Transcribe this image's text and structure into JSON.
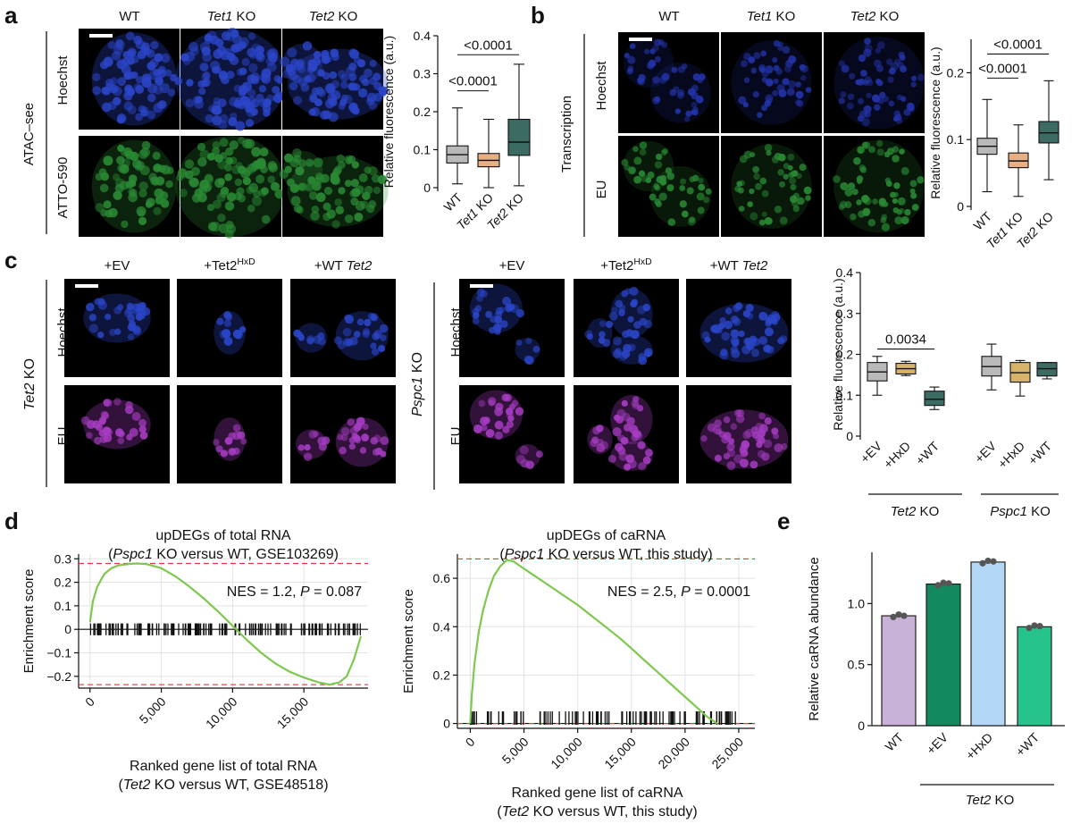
{
  "panels": {
    "a": {
      "label": "a",
      "columns": [
        {
          "text": "WT",
          "italic": "",
          "rest": ""
        },
        {
          "text": "",
          "italic": "Tet1",
          "rest": " KO"
        },
        {
          "text": "",
          "italic": "Tet2",
          "rest": " KO"
        }
      ],
      "group_label": "ATAC–see",
      "row_labels": [
        "Hoechst",
        "ATTO-590"
      ],
      "micro_colors": [
        "#2b45c8",
        "#2a8a34"
      ],
      "chart": {
        "ylabel": "Relative fluorescence (a.u.)",
        "yticks": [
          "0",
          "0.1",
          "0.2",
          "0.3",
          "0.4"
        ],
        "ylim": [
          0,
          0.4
        ],
        "categories": [
          "WT",
          "Tet1 KO",
          "Tet2 KO"
        ],
        "cat_plain": [
          "WT",
          "",
          ""
        ],
        "cat_italic": [
          "",
          "Tet1",
          "Tet2"
        ],
        "cat_rest": [
          "",
          " KO",
          " KO"
        ],
        "colors": [
          "#b9b9b9",
          "#e8ae86",
          "#3c6b63"
        ],
        "boxes": [
          {
            "min": 0.01,
            "q1": 0.065,
            "median": 0.087,
            "q3": 0.11,
            "max": 0.21
          },
          {
            "min": 0.0,
            "q1": 0.055,
            "median": 0.072,
            "q3": 0.09,
            "max": 0.18
          },
          {
            "min": 0.005,
            "q1": 0.085,
            "median": 0.12,
            "q3": 0.18,
            "max": 0.325
          }
        ],
        "brackets": [
          {
            "from": 0,
            "to": 1,
            "y": 0.255,
            "label": "<0.0001"
          },
          {
            "from": 0,
            "to": 2,
            "y": 0.35,
            "label": "<0.0001"
          }
        ]
      }
    },
    "b": {
      "label": "b",
      "columns": [
        {
          "text": "WT",
          "italic": "",
          "rest": ""
        },
        {
          "text": "",
          "italic": "Tet1",
          "rest": " KO"
        },
        {
          "text": "",
          "italic": "Tet2",
          "rest": " KO"
        }
      ],
      "group_label": "Transcription",
      "row_labels": [
        "Hoechst",
        "EU"
      ],
      "micro_colors": [
        "#2333a8",
        "#2a8a34"
      ],
      "chart": {
        "ylabel": "Relative fluorescence (a.u.)",
        "yticks": [
          "0",
          "0.1",
          "0.2"
        ],
        "ylim": [
          0,
          0.25
        ],
        "categories": [
          "WT",
          "Tet1 KO",
          "Tet2 KO"
        ],
        "cat_plain": [
          "WT",
          "",
          ""
        ],
        "cat_italic": [
          "",
          "Tet1",
          "Tet2"
        ],
        "cat_rest": [
          "",
          " KO",
          " KO"
        ],
        "colors": [
          "#b9b9b9",
          "#e8ae86",
          "#3c6b63"
        ],
        "boxes": [
          {
            "min": 0.022,
            "q1": 0.078,
            "median": 0.09,
            "q3": 0.102,
            "max": 0.16
          },
          {
            "min": 0.015,
            "q1": 0.058,
            "median": 0.068,
            "q3": 0.08,
            "max": 0.122
          },
          {
            "min": 0.04,
            "q1": 0.095,
            "median": 0.11,
            "q3": 0.127,
            "max": 0.188
          }
        ],
        "brackets": [
          {
            "from": 0,
            "to": 1,
            "y": 0.192,
            "label": "<0.0001"
          },
          {
            "from": 0,
            "to": 2,
            "y": 0.228,
            "label": "<0.0001"
          }
        ]
      }
    },
    "c": {
      "label": "c",
      "col_labels": [
        "+EV",
        "+Tet2",
        "+WT "
      ],
      "col_sup": [
        "",
        "HxD",
        ""
      ],
      "col_italic_tail": [
        "",
        "",
        "Tet2"
      ],
      "left_group": {
        "italic": "Tet2",
        "rest": " KO"
      },
      "right_group": {
        "italic": "Pspc1",
        "rest": " KO"
      },
      "row_labels": [
        "Hoechst",
        "EU"
      ],
      "micro_colors": [
        "#2b45c8",
        "#a63cc2"
      ],
      "chart": {
        "ylabel": "Relative fluorescence (a.u.)",
        "yticks": [
          "0",
          "0.1",
          "0.2",
          "0.3",
          "0.4"
        ],
        "ylim": [
          0,
          0.4
        ],
        "categories": [
          "+EV",
          "+HxD",
          "+WT",
          "+EV",
          "+HxD",
          "+WT"
        ],
        "colors": [
          "#b9b9b9",
          "#d8b46a",
          "#3c6b63",
          "#b9b9b9",
          "#d8b46a",
          "#3c6b63"
        ],
        "boxes": [
          {
            "min": 0.1,
            "q1": 0.135,
            "median": 0.157,
            "q3": 0.18,
            "max": 0.195
          },
          {
            "min": 0.148,
            "q1": 0.152,
            "median": 0.165,
            "q3": 0.178,
            "max": 0.183
          },
          {
            "min": 0.065,
            "q1": 0.075,
            "median": 0.09,
            "q3": 0.11,
            "max": 0.12
          },
          {
            "min": 0.113,
            "q1": 0.147,
            "median": 0.17,
            "q3": 0.195,
            "max": 0.225
          },
          {
            "min": 0.098,
            "q1": 0.132,
            "median": 0.155,
            "q3": 0.18,
            "max": 0.185
          },
          {
            "min": 0.14,
            "q1": 0.147,
            "median": 0.165,
            "q3": 0.18,
            "max": 0.18
          }
        ],
        "brackets": [
          {
            "from": 0,
            "to": 2,
            "y": 0.213,
            "label": "0.0034"
          }
        ],
        "group_labels": [
          {
            "italic": "Tet2",
            "rest": " KO"
          },
          {
            "italic": "Pspc1",
            "rest": " KO"
          }
        ]
      }
    },
    "d": {
      "label": "d",
      "left": {
        "title1": "upDEGs of total RNA",
        "title2_open": "(",
        "title2_italic": "Pspc1",
        "title2_rest": " KO versus WT, GSE103269)",
        "annotation": "NES = 1.2, ",
        "annotation_p": "P",
        "annotation_tail": " = 0.087",
        "ylabel": "Enrichment score",
        "yticks": [
          "0.3",
          "0.2",
          "0.1",
          "0",
          "−0.1",
          "−0.2"
        ],
        "ytick_values": [
          0.3,
          0.2,
          0.1,
          0,
          -0.1,
          -0.2
        ],
        "ylim": [
          -0.25,
          0.32
        ],
        "xticks": [
          "0",
          "5,000",
          "10,000",
          "15,000"
        ],
        "xtick_values": [
          0,
          5000,
          10000,
          15000
        ],
        "xlim": [
          -800,
          19500
        ],
        "xlabel1": "Ranked gene list of total RNA",
        "xlabel2_open": "(",
        "xlabel2_italic": "Tet2",
        "xlabel2_rest": " KO versus WT, GSE48518)",
        "max_es": 0.28,
        "min_es": -0.235,
        "curve": [
          [
            0,
            0.03
          ],
          [
            200,
            0.12
          ],
          [
            500,
            0.18
          ],
          [
            1000,
            0.235
          ],
          [
            1500,
            0.26
          ],
          [
            2000,
            0.272
          ],
          [
            2700,
            0.278
          ],
          [
            3300,
            0.28
          ],
          [
            4000,
            0.277
          ],
          [
            5000,
            0.26
          ],
          [
            6000,
            0.225
          ],
          [
            7000,
            0.18
          ],
          [
            8000,
            0.13
          ],
          [
            9000,
            0.075
          ],
          [
            10000,
            0.015
          ],
          [
            11000,
            -0.045
          ],
          [
            12000,
            -0.1
          ],
          [
            13000,
            -0.145
          ],
          [
            14000,
            -0.18
          ],
          [
            15000,
            -0.205
          ],
          [
            16000,
            -0.225
          ],
          [
            16800,
            -0.235
          ],
          [
            17500,
            -0.225
          ],
          [
            18000,
            -0.2
          ],
          [
            18500,
            -0.13
          ],
          [
            19000,
            -0.03
          ]
        ],
        "hits_range": [
          0,
          19000
        ],
        "hits_count": 150,
        "hits_band": [
          0.025,
          -0.025
        ]
      },
      "right": {
        "title1": "upDEGs of caRNA",
        "title2_open": "(",
        "title2_italic": "Pspc1",
        "title2_rest": " KO versus WT, this study)",
        "annotation": "NES = 2.5, ",
        "annotation_p": "P",
        "annotation_tail": " = 0.0001",
        "ylabel": "Enrichment score",
        "yticks": [
          "0.6",
          "0.4",
          "0.2",
          "0"
        ],
        "ytick_values": [
          0.6,
          0.4,
          0.2,
          0
        ],
        "ylim": [
          -0.02,
          0.7
        ],
        "xticks": [
          "0",
          "5,000",
          "10,000",
          "15,000",
          "20,000",
          "25,000"
        ],
        "xtick_values": [
          0,
          5000,
          10000,
          15000,
          20000,
          25000
        ],
        "xlim": [
          -1200,
          26500
        ],
        "xlabel1": "Ranked gene list of caRNA",
        "xlabel2_open": "(",
        "xlabel2_italic": "Tet2",
        "xlabel2_rest": " KO versus WT, this study)",
        "max_es": 0.68,
        "min_es": 0.0,
        "curve": [
          [
            0,
            0.0
          ],
          [
            150,
            0.12
          ],
          [
            400,
            0.25
          ],
          [
            800,
            0.38
          ],
          [
            1200,
            0.47
          ],
          [
            1700,
            0.55
          ],
          [
            2200,
            0.61
          ],
          [
            2800,
            0.65
          ],
          [
            3400,
            0.675
          ],
          [
            4000,
            0.67
          ],
          [
            5000,
            0.64
          ],
          [
            6000,
            0.61
          ],
          [
            7000,
            0.58
          ],
          [
            8000,
            0.55
          ],
          [
            9000,
            0.52
          ],
          [
            10000,
            0.49
          ],
          [
            11000,
            0.455
          ],
          [
            12000,
            0.42
          ],
          [
            13000,
            0.385
          ],
          [
            14000,
            0.35
          ],
          [
            15000,
            0.31
          ],
          [
            16000,
            0.27
          ],
          [
            17000,
            0.23
          ],
          [
            18000,
            0.19
          ],
          [
            19000,
            0.15
          ],
          [
            20000,
            0.11
          ],
          [
            21000,
            0.07
          ],
          [
            22000,
            0.03
          ],
          [
            23000,
            0.0
          ]
        ],
        "hits_range": [
          0,
          25000
        ],
        "hits_count": 110,
        "hits_band": [
          0.05,
          -0.005
        ]
      }
    },
    "e": {
      "label": "e",
      "chart": {
        "ylabel": "Relative caRNA abundance",
        "yticks": [
          "0",
          "0.5",
          "1.0"
        ],
        "ytick_values": [
          0,
          0.5,
          1.0
        ],
        "ylim": [
          0,
          1.42
        ],
        "categories": [
          "WT",
          "+EV",
          "+HxD",
          "+WT"
        ],
        "values": [
          0.9,
          1.16,
          1.34,
          0.81
        ],
        "colors": [
          "#c8b2d8",
          "#138a5e",
          "#b5d7f7",
          "#26c48a"
        ],
        "points": [
          [
            0.89,
            0.91,
            0.9
          ],
          [
            1.15,
            1.17,
            1.165
          ],
          [
            1.33,
            1.35,
            1.345
          ],
          [
            0.8,
            0.82,
            0.815
          ]
        ],
        "group": {
          "italic": "Tet2",
          "rest": " KO"
        }
      }
    }
  }
}
